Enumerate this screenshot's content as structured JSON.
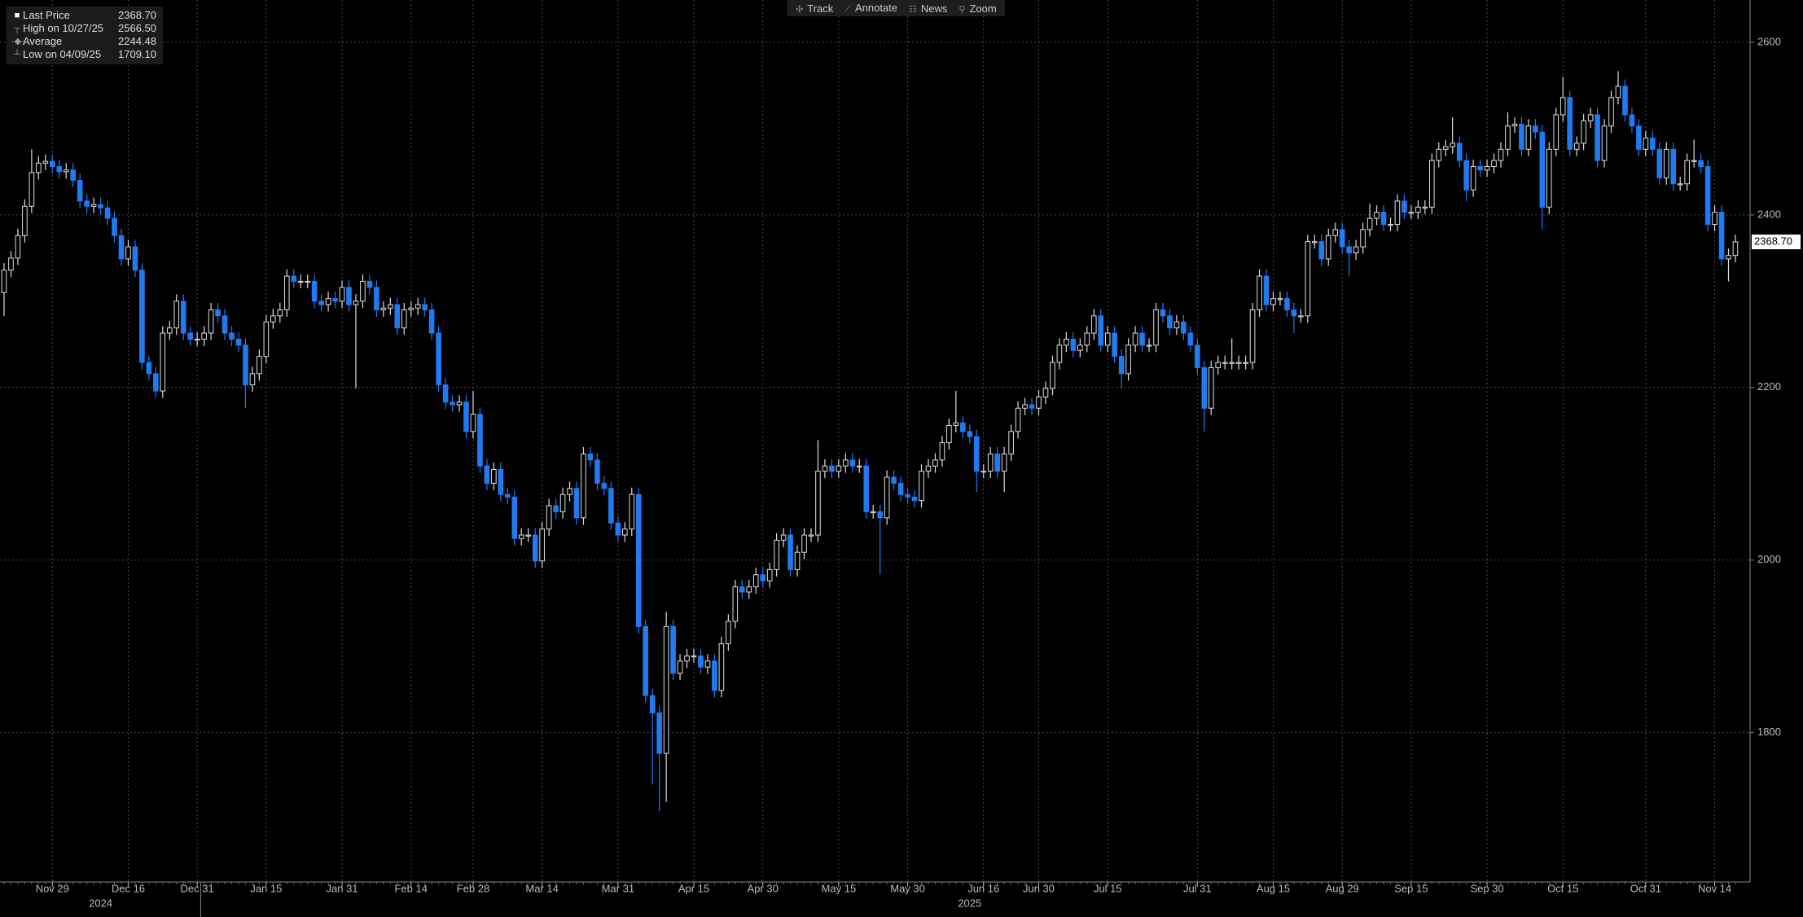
{
  "toolbar": [
    "Track",
    "Annotate",
    "News",
    "Zoom"
  ],
  "chart_data": {
    "type": "candlestick",
    "legend": [
      {
        "name": "Last Price",
        "value": 2368.7,
        "value_label": "2368.70"
      },
      {
        "name": "High on 10/27/25",
        "value": 2566.5,
        "value_label": "2566.50"
      },
      {
        "name": "Average",
        "value": 2244.48
      },
      {
        "name": "Low on 04/09/25",
        "value": 1709.1,
        "value_label": "1709.10"
      }
    ],
    "categories": [
      null,
      null,
      null,
      null,
      null,
      null,
      null,
      "Nov 29",
      null,
      null,
      null,
      null,
      null,
      null,
      null,
      null,
      null,
      null,
      "Dec 16",
      null,
      null,
      null,
      null,
      null,
      null,
      null,
      null,
      null,
      "Dec 31",
      null,
      null,
      null,
      null,
      null,
      null,
      null,
      null,
      null,
      "Jan 15",
      null,
      null,
      null,
      null,
      null,
      null,
      null,
      null,
      null,
      null,
      "Jan 31",
      null,
      null,
      null,
      null,
      null,
      null,
      null,
      null,
      null,
      "Feb 14",
      null,
      null,
      null,
      null,
      null,
      null,
      null,
      null,
      "Feb 28",
      null,
      null,
      null,
      null,
      null,
      null,
      null,
      null,
      null,
      "Mar 14",
      null,
      null,
      null,
      null,
      null,
      null,
      null,
      null,
      null,
      null,
      "Mar 31",
      null,
      null,
      null,
      null,
      null,
      null,
      null,
      null,
      null,
      null,
      "Apr 15",
      null,
      null,
      null,
      null,
      null,
      null,
      null,
      null,
      null,
      "Apr 30",
      null,
      null,
      null,
      null,
      null,
      null,
      null,
      null,
      null,
      null,
      "May 15",
      null,
      null,
      null,
      null,
      null,
      null,
      null,
      null,
      null,
      "May 30",
      null,
      null,
      null,
      null,
      null,
      null,
      null,
      null,
      null,
      null,
      "Jun 16",
      null,
      null,
      null,
      null,
      null,
      null,
      null,
      "Jun 30",
      null,
      null,
      null,
      null,
      null,
      null,
      null,
      null,
      null,
      "Jul 15",
      null,
      null,
      null,
      null,
      null,
      null,
      null,
      null,
      null,
      null,
      null,
      null,
      "Jul 31",
      null,
      null,
      null,
      null,
      null,
      null,
      null,
      null,
      null,
      null,
      "Aug 15",
      null,
      null,
      null,
      null,
      null,
      null,
      null,
      null,
      null,
      "Aug 29",
      null,
      null,
      null,
      null,
      null,
      null,
      null,
      null,
      null,
      "Sep 15",
      null,
      null,
      null,
      null,
      null,
      null,
      null,
      null,
      null,
      null,
      "Sep 30",
      null,
      null,
      null,
      null,
      null,
      null,
      null,
      null,
      null,
      null,
      "Oct 15",
      null,
      null,
      null,
      null,
      null,
      null,
      null,
      null,
      null,
      null,
      null,
      "Oct 31",
      null,
      null,
      null,
      null,
      null,
      null,
      null,
      null,
      null,
      "Nov 14",
      null,
      null,
      null
    ],
    "x_groups": [
      {
        "label": "2024",
        "span": 29
      },
      {
        "label": "2025",
        "span": 223
      }
    ],
    "open": [
      2310,
      2336,
      2350,
      2376,
      2410,
      2449,
      2460,
      2462,
      2456,
      2450,
      2452,
      2440,
      2416,
      2410,
      2412,
      2408,
      2396,
      2376,
      2349,
      2363,
      2336,
      2229,
      2216,
      2196,
      2263,
      2269,
      2300,
      2263,
      2256,
      2256,
      2263,
      2290,
      2283,
      2263,
      2256,
      2249,
      2203,
      2216,
      2236,
      2276,
      2283,
      2290,
      2329,
      2323,
      2323,
      2323,
      2300,
      2296,
      2303,
      2300,
      2316,
      2296,
      2300,
      2323,
      2316,
      2290,
      2292,
      2296,
      2269,
      2290,
      2292,
      2296,
      2290,
      2263,
      2203,
      2183,
      2180,
      2183,
      2149,
      2169,
      2109,
      2089,
      2105,
      2076,
      2073,
      2025,
      2029,
      2029,
      1999,
      2036,
      2063,
      2056,
      2076,
      2083,
      2049,
      2123,
      2116,
      2089,
      2083,
      2043,
      2029,
      2036,
      2076,
      1923,
      1843,
      1823,
      1776,
      1923,
      1869,
      1883,
      1889,
      1889,
      1876,
      1883,
      1849,
      1903,
      1929,
      1969,
      1963,
      1969,
      1983,
      1976,
      1989,
      2023,
      2029,
      1989,
      2009,
      2029,
      2029,
      2103,
      2109,
      2103,
      2109,
      2116,
      2109,
      2109,
      2056,
      2056,
      2049,
      2096,
      2089,
      2076,
      2073,
      2069,
      2103,
      2109,
      2116,
      2136,
      2156,
      2159,
      2149,
      2143,
      2103,
      2103,
      2123,
      2103,
      2123,
      2149,
      2176,
      2180,
      2176,
      2189,
      2199,
      2229,
      2249,
      2256,
      2243,
      2249,
      2263,
      2283,
      2249,
      2263,
      2236,
      2216,
      2249,
      2263,
      2249,
      2249,
      2290,
      2283,
      2269,
      2276,
      2263,
      2249,
      2223,
      2176,
      2223,
      2229,
      2229,
      2229,
      2229,
      2229,
      2290,
      2329,
      2296,
      2303,
      2303,
      2290,
      2283,
      2283,
      2369,
      2369,
      2349,
      2376,
      2383,
      2363,
      2356,
      2363,
      2383,
      2396,
      2403,
      2389,
      2389,
      2416,
      2403,
      2403,
      2409,
      2409,
      2463,
      2476,
      2479,
      2483,
      2463,
      2429,
      2456,
      2452,
      2456,
      2463,
      2476,
      2503,
      2505,
      2476,
      2503,
      2496,
      2409,
      2476,
      2516,
      2536,
      2476,
      2483,
      2509,
      2516,
      2463,
      2503,
      2536,
      2549,
      2516,
      2503,
      2476,
      2489,
      2476,
      2443,
      2476,
      2436,
      2436,
      2463,
      2463,
      2456,
      2389,
      2403,
      2349,
      2353
    ],
    "high": [
      2344,
      2358,
      2384,
      2418,
      2476,
      2468,
      2470,
      2470,
      2464,
      2460,
      2460,
      2448,
      2424,
      2420,
      2420,
      2416,
      2404,
      2384,
      2371,
      2371,
      2344,
      2237,
      2224,
      2271,
      2277,
      2308,
      2308,
      2271,
      2264,
      2271,
      2298,
      2298,
      2291,
      2271,
      2264,
      2257,
      2224,
      2244,
      2284,
      2291,
      2298,
      2337,
      2337,
      2331,
      2331,
      2331,
      2308,
      2311,
      2311,
      2324,
      2324,
      2308,
      2331,
      2331,
      2324,
      2300,
      2304,
      2304,
      2298,
      2300,
      2304,
      2304,
      2298,
      2271,
      2211,
      2191,
      2191,
      2191,
      2196,
      2177,
      2117,
      2113,
      2113,
      2084,
      2081,
      2037,
      2037,
      2037,
      2044,
      2071,
      2071,
      2084,
      2091,
      2091,
      2131,
      2131,
      2124,
      2097,
      2091,
      2051,
      2044,
      2084,
      2084,
      1931,
      1851,
      1831,
      1940,
      1931,
      1891,
      1897,
      1897,
      1897,
      1891,
      1891,
      1911,
      1937,
      1977,
      1977,
      1977,
      1991,
      1991,
      1997,
      2031,
      2037,
      2037,
      2017,
      2037,
      2037,
      2139,
      2117,
      2117,
      2117,
      2124,
      2124,
      2117,
      2117,
      2064,
      2064,
      2104,
      2104,
      2097,
      2084,
      2081,
      2111,
      2117,
      2124,
      2144,
      2164,
      2196,
      2167,
      2157,
      2151,
      2111,
      2131,
      2131,
      2131,
      2157,
      2184,
      2188,
      2188,
      2197,
      2207,
      2237,
      2257,
      2264,
      2264,
      2257,
      2271,
      2291,
      2291,
      2271,
      2271,
      2244,
      2257,
      2271,
      2271,
      2257,
      2298,
      2298,
      2291,
      2284,
      2284,
      2271,
      2257,
      2231,
      2231,
      2237,
      2237,
      2257,
      2237,
      2237,
      2298,
      2337,
      2337,
      2311,
      2311,
      2311,
      2298,
      2291,
      2377,
      2377,
      2377,
      2384,
      2391,
      2391,
      2371,
      2371,
      2391,
      2413,
      2411,
      2411,
      2397,
      2424,
      2424,
      2411,
      2417,
      2417,
      2471,
      2484,
      2487,
      2513,
      2491,
      2471,
      2464,
      2464,
      2464,
      2471,
      2484,
      2519,
      2513,
      2513,
      2511,
      2511,
      2504,
      2484,
      2524,
      2560,
      2544,
      2491,
      2517,
      2524,
      2524,
      2511,
      2544,
      2566.5,
      2557,
      2524,
      2511,
      2497,
      2497,
      2484,
      2484,
      2484,
      2444,
      2471,
      2487,
      2471,
      2464,
      2411,
      2411,
      2361,
      2377
    ],
    "low": [
      2283,
      2328,
      2342,
      2368,
      2402,
      2441,
      2452,
      2448,
      2442,
      2442,
      2432,
      2408,
      2402,
      2402,
      2400,
      2388,
      2368,
      2341,
      2341,
      2328,
      2221,
      2208,
      2188,
      2188,
      2255,
      2261,
      2255,
      2248,
      2248,
      2248,
      2255,
      2275,
      2255,
      2248,
      2241,
      2176,
      2195,
      2208,
      2228,
      2268,
      2275,
      2282,
      2315,
      2315,
      2315,
      2292,
      2288,
      2288,
      2292,
      2292,
      2288,
      2199,
      2292,
      2308,
      2282,
      2282,
      2284,
      2261,
      2261,
      2282,
      2284,
      2282,
      2255,
      2195,
      2175,
      2172,
      2172,
      2141,
      2141,
      2101,
      2081,
      2081,
      2068,
      2065,
      2017,
      2017,
      2021,
      1991,
      1991,
      2028,
      2048,
      2048,
      2068,
      2041,
      2041,
      2108,
      2081,
      2075,
      2035,
      2021,
      2021,
      2028,
      1915,
      1835,
      1740,
      1709.1,
      1720,
      1861,
      1861,
      1875,
      1881,
      1868,
      1868,
      1841,
      1841,
      1895,
      1921,
      1955,
      1955,
      1961,
      1968,
      1968,
      1981,
      2015,
      1981,
      1981,
      2001,
      2021,
      2021,
      2095,
      2095,
      2095,
      2101,
      2101,
      2101,
      2048,
      2048,
      1983,
      2041,
      2081,
      2068,
      2065,
      2061,
      2061,
      2095,
      2101,
      2108,
      2128,
      2148,
      2141,
      2135,
      2079,
      2095,
      2095,
      2095,
      2079,
      2115,
      2141,
      2168,
      2168,
      2168,
      2181,
      2191,
      2221,
      2241,
      2235,
      2235,
      2241,
      2255,
      2241,
      2241,
      2228,
      2199,
      2208,
      2241,
      2241,
      2241,
      2241,
      2275,
      2261,
      2261,
      2255,
      2241,
      2215,
      2149,
      2168,
      2215,
      2221,
      2221,
      2221,
      2221,
      2221,
      2282,
      2288,
      2288,
      2295,
      2282,
      2263,
      2275,
      2275,
      2361,
      2341,
      2341,
      2368,
      2355,
      2329,
      2348,
      2355,
      2375,
      2388,
      2381,
      2381,
      2381,
      2395,
      2395,
      2395,
      2401,
      2401,
      2455,
      2468,
      2471,
      2455,
      2416,
      2421,
      2444,
      2444,
      2448,
      2455,
      2468,
      2495,
      2468,
      2468,
      2488,
      2383,
      2401,
      2468,
      2508,
      2468,
      2468,
      2475,
      2501,
      2455,
      2455,
      2495,
      2528,
      2508,
      2495,
      2468,
      2468,
      2468,
      2435,
      2435,
      2428,
      2428,
      2428,
      2455,
      2448,
      2381,
      2381,
      2341,
      2323,
      2345
    ],
    "close": [
      2336,
      2350,
      2376,
      2410,
      2449,
      2460,
      2462,
      2456,
      2450,
      2452,
      2440,
      2416,
      2410,
      2412,
      2408,
      2396,
      2376,
      2349,
      2363,
      2336,
      2229,
      2216,
      2196,
      2263,
      2269,
      2300,
      2263,
      2256,
      2256,
      2263,
      2290,
      2283,
      2263,
      2256,
      2249,
      2203,
      2216,
      2236,
      2276,
      2283,
      2290,
      2329,
      2323,
      2323,
      2323,
      2300,
      2296,
      2303,
      2300,
      2316,
      2296,
      2300,
      2323,
      2316,
      2290,
      2292,
      2296,
      2269,
      2290,
      2292,
      2296,
      2290,
      2263,
      2203,
      2183,
      2180,
      2183,
      2149,
      2169,
      2109,
      2089,
      2105,
      2076,
      2073,
      2025,
      2029,
      2029,
      1999,
      2036,
      2063,
      2056,
      2076,
      2083,
      2049,
      2123,
      2116,
      2089,
      2083,
      2043,
      2029,
      2036,
      2076,
      1923,
      1843,
      1823,
      1776,
      1923,
      1869,
      1883,
      1889,
      1889,
      1876,
      1883,
      1849,
      1903,
      1929,
      1969,
      1963,
      1969,
      1983,
      1976,
      1989,
      2023,
      2029,
      1989,
      2009,
      2029,
      2029,
      2103,
      2109,
      2103,
      2109,
      2116,
      2109,
      2109,
      2056,
      2056,
      2049,
      2096,
      2089,
      2076,
      2073,
      2069,
      2103,
      2109,
      2116,
      2136,
      2156,
      2159,
      2149,
      2143,
      2103,
      2103,
      2123,
      2103,
      2123,
      2149,
      2176,
      2180,
      2176,
      2189,
      2199,
      2229,
      2249,
      2256,
      2243,
      2249,
      2263,
      2283,
      2249,
      2263,
      2236,
      2216,
      2249,
      2263,
      2249,
      2249,
      2290,
      2283,
      2269,
      2276,
      2263,
      2249,
      2223,
      2176,
      2223,
      2229,
      2229,
      2229,
      2229,
      2229,
      2290,
      2329,
      2296,
      2303,
      2303,
      2290,
      2283,
      2283,
      2369,
      2369,
      2349,
      2376,
      2383,
      2363,
      2356,
      2363,
      2383,
      2396,
      2403,
      2389,
      2389,
      2416,
      2403,
      2403,
      2409,
      2409,
      2463,
      2476,
      2479,
      2483,
      2463,
      2429,
      2456,
      2452,
      2456,
      2463,
      2476,
      2503,
      2505,
      2476,
      2503,
      2496,
      2409,
      2476,
      2516,
      2536,
      2476,
      2483,
      2509,
      2516,
      2463,
      2503,
      2536,
      2549,
      2516,
      2503,
      2476,
      2489,
      2476,
      2443,
      2476,
      2436,
      2436,
      2463,
      2463,
      2456,
      2389,
      2403,
      2349,
      2353,
      2368.7
    ],
    "up_color": "#ffffff",
    "down_color": "#1f7bf2",
    "ylim": [
      1627,
      2649
    ],
    "yticks": [
      1800,
      2000,
      2200,
      2400,
      2600
    ],
    "grid": true
  }
}
